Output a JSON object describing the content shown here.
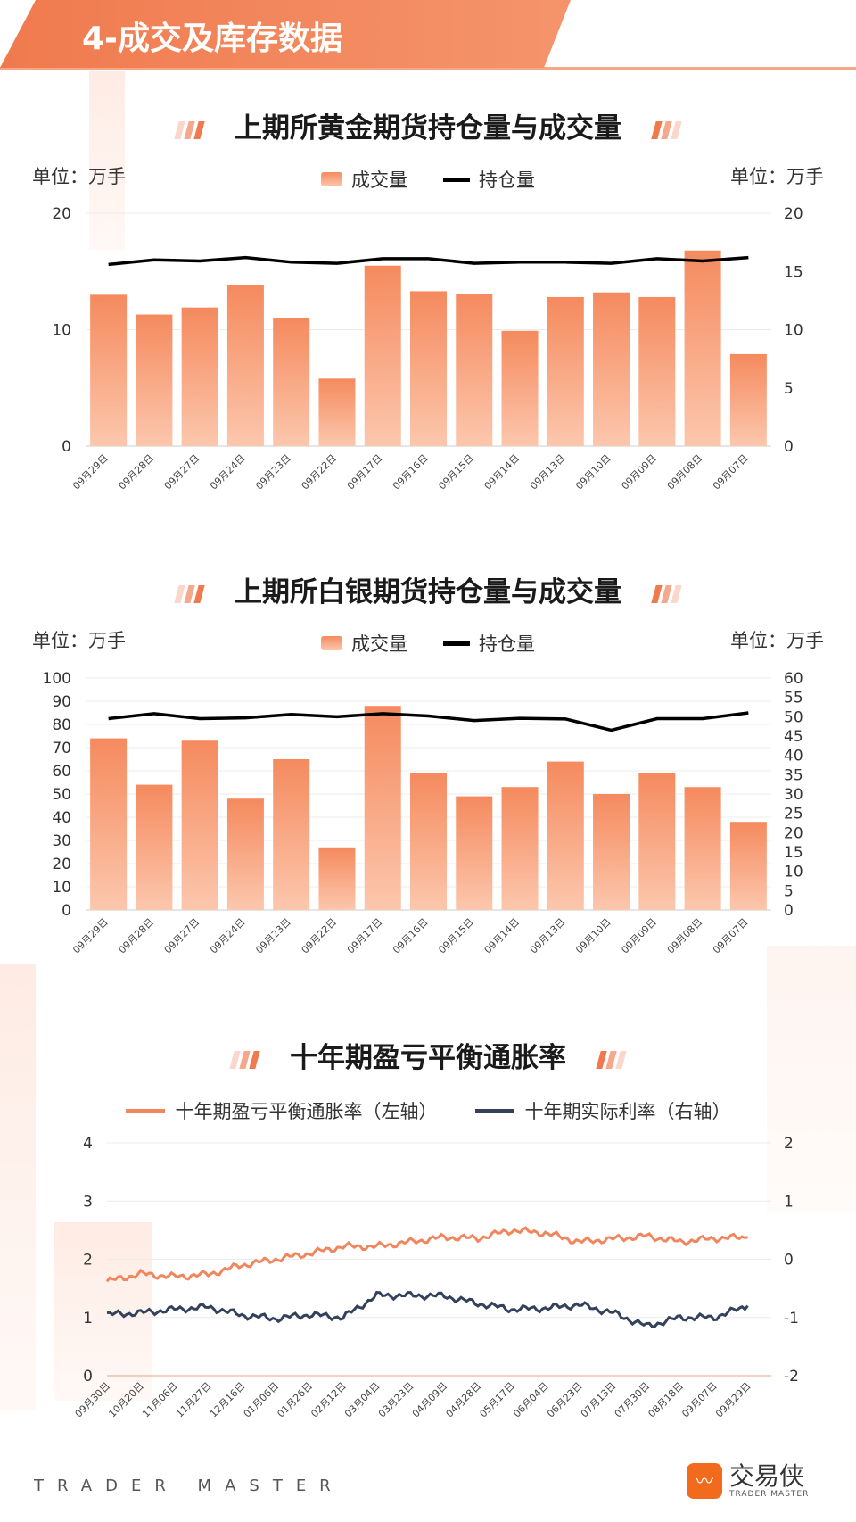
{
  "header": {
    "title": "4-成交及库存数据"
  },
  "colors": {
    "accent": "#f07a4e",
    "bar_top": "#f58a5e",
    "bar_bottom": "#fcc7ad",
    "oi_line": "#000000",
    "breakeven": "#f0865e",
    "real_rate": "#33415c"
  },
  "chart_data": [
    {
      "type": "bar",
      "title": "上期所黄金期货持仓量与成交量",
      "unit_left": "单位：万手",
      "unit_right": "单位：万手",
      "categories": [
        "09月29日",
        "09月28日",
        "09月27日",
        "09月24日",
        "09月23日",
        "09月22日",
        "09月17日",
        "09月16日",
        "09月15日",
        "09月14日",
        "09月13日",
        "09月10日",
        "09月09日",
        "09月08日",
        "09月07日"
      ],
      "series": [
        {
          "name": "成交量",
          "axis": "left",
          "type": "bar",
          "values": [
            13.0,
            11.3,
            11.9,
            13.8,
            11.0,
            5.8,
            15.5,
            13.3,
            13.1,
            9.9,
            12.8,
            13.2,
            12.8,
            16.8,
            7.9
          ]
        },
        {
          "name": "持仓量",
          "axis": "right",
          "type": "line",
          "values": [
            15.6,
            16.0,
            15.9,
            16.2,
            15.8,
            15.7,
            16.1,
            16.1,
            15.7,
            15.8,
            15.8,
            15.7,
            16.1,
            15.9,
            16.2
          ]
        }
      ],
      "ylim_left": [
        0,
        20
      ],
      "yticks_left": [
        "0",
        "10",
        "20"
      ],
      "ylim_right": [
        0,
        20
      ],
      "yticks_right": [
        "0",
        "5",
        "10",
        "15",
        "20"
      ]
    },
    {
      "type": "bar",
      "title": "上期所白银期货持仓量与成交量",
      "unit_left": "单位：万手",
      "unit_right": "单位：万手",
      "categories": [
        "09月29日",
        "09月28日",
        "09月27日",
        "09月24日",
        "09月23日",
        "09月22日",
        "09月17日",
        "09月16日",
        "09月15日",
        "09月14日",
        "09月13日",
        "09月10日",
        "09月09日",
        "09月08日",
        "09月07日"
      ],
      "series": [
        {
          "name": "成交量",
          "axis": "left",
          "type": "bar",
          "values": [
            74,
            54,
            73,
            48,
            65,
            27,
            88,
            59,
            49,
            53,
            64,
            50,
            59,
            53,
            38
          ]
        },
        {
          "name": "持仓量",
          "axis": "right",
          "type": "line",
          "values": [
            49.5,
            50.8,
            49.5,
            49.7,
            50.6,
            50.0,
            50.8,
            50.2,
            49.0,
            49.6,
            49.4,
            46.5,
            49.5,
            49.5,
            51.0
          ]
        }
      ],
      "ylim_left": [
        0,
        100
      ],
      "yticks_left": [
        "0",
        "10",
        "20",
        "30",
        "40",
        "50",
        "60",
        "70",
        "80",
        "90",
        "100"
      ],
      "ylim_right": [
        0,
        60
      ],
      "yticks_right": [
        "0",
        "5",
        "10",
        "15",
        "20",
        "25",
        "30",
        "35",
        "40",
        "45",
        "50",
        "55",
        "60"
      ]
    },
    {
      "type": "line",
      "title": "十年期盈亏平衡通胀率",
      "categories": [
        "09月30日",
        "10月20日",
        "11月06日",
        "11月27日",
        "12月16日",
        "01月06日",
        "01月26日",
        "02月12日",
        "03月04日",
        "03月23日",
        "04月09日",
        "04月28日",
        "05月17日",
        "06月04日",
        "06月23日",
        "07月13日",
        "07月30日",
        "08月18日",
        "09月07日",
        "09月29日"
      ],
      "series": [
        {
          "name": "十年期盈亏平衡通胀率（左轴）",
          "axis": "left",
          "values": [
            1.62,
            1.75,
            1.7,
            1.74,
            1.9,
            2.0,
            2.1,
            2.22,
            2.22,
            2.3,
            2.38,
            2.36,
            2.5,
            2.45,
            2.3,
            2.35,
            2.4,
            2.3,
            2.36,
            2.38
          ]
        },
        {
          "name": "十年期实际利率（右轴）",
          "axis": "right",
          "values": [
            -0.95,
            -0.92,
            -0.86,
            -0.82,
            -0.96,
            -1.02,
            -0.95,
            -1.0,
            -0.62,
            -0.62,
            -0.63,
            -0.76,
            -0.86,
            -0.84,
            -0.78,
            -0.92,
            -1.15,
            -1.0,
            -1.0,
            -0.8
          ]
        }
      ],
      "ylim_left": [
        0,
        4
      ],
      "yticks_left": [
        "0",
        "1",
        "2",
        "3",
        "4"
      ],
      "ylim_right": [
        -2,
        2
      ],
      "yticks_right": [
        "-2",
        "-1",
        "0",
        "1",
        "2"
      ]
    }
  ],
  "footer": {
    "brand_en": "TRADER MASTER",
    "logo_cn": "交易侠",
    "logo_en": "TRADER MASTER"
  }
}
